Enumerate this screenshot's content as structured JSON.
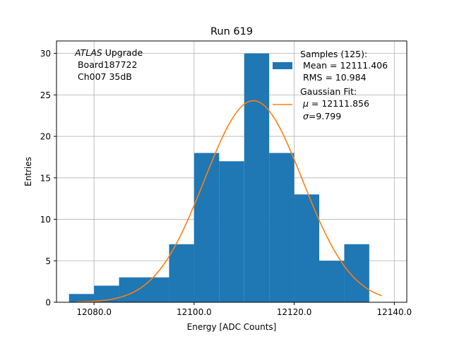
{
  "chart_data": {
    "type": "bar",
    "title": "Run 619",
    "xlabel": "Energy [ADC Counts]",
    "ylabel": "Entries",
    "xlim": [
      12072.5,
      12142.5
    ],
    "ylim": [
      0,
      31.5
    ],
    "grid": true,
    "x_ticks": [
      12080.0,
      12100.0,
      12120.0,
      12140.0
    ],
    "x_tick_labels": [
      "12080.0",
      "12100.0",
      "12120.0",
      "12140.0"
    ],
    "y_ticks": [
      0,
      5,
      10,
      15,
      20,
      25,
      30
    ],
    "y_tick_labels": [
      "0",
      "5",
      "10",
      "15",
      "20",
      "25",
      "30"
    ],
    "bin_edges": [
      12075,
      12080,
      12085,
      12090,
      12095,
      12100,
      12105,
      12110,
      12115,
      12120,
      12125,
      12130,
      12135,
      12140
    ],
    "counts": [
      1,
      2,
      3,
      3,
      7,
      18,
      17,
      30,
      18,
      13,
      5,
      7,
      0
    ],
    "hist_color": "#1f77b4",
    "fit": {
      "mu": 12111.856,
      "sigma": 9.799,
      "amplitude": 24.3,
      "x_range": [
        12076.5,
        12137.5
      ],
      "color": "#ff7f0e"
    },
    "annotation": {
      "line1_italic": "ATLAS",
      "line1_rest": " Upgrade",
      "line2": " Board187722",
      "line3": " Ch007 35dB"
    },
    "legend": {
      "location": "upper right",
      "hist_label_line1": "Samples (125):",
      "hist_label_line2": " Mean = 12111.406",
      "hist_label_line3": " RMS = 10.984",
      "fit_label_line1": "Gaussian Fit:",
      "fit_label_line2_sym": "μ",
      "fit_label_line2_rest": " = 12111.856",
      "fit_label_line3_sym": "σ",
      "fit_label_line3_rest": "=9.799"
    }
  }
}
